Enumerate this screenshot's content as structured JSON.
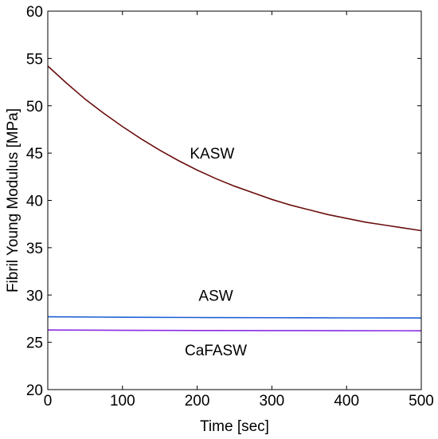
{
  "chart_data": {
    "type": "line",
    "xlabel": "Time [sec]",
    "ylabel": "Fibril Young Modulus [MPa]",
    "xlim": [
      0,
      500
    ],
    "ylim": [
      20,
      60
    ],
    "xticks": [
      0,
      100,
      200,
      300,
      400,
      500
    ],
    "yticks": [
      20,
      25,
      30,
      35,
      40,
      45,
      50,
      55,
      60
    ],
    "grid": false,
    "series": [
      {
        "name": "KASW",
        "color": "#6b0f0f",
        "x": [
          0,
          25,
          50,
          75,
          100,
          125,
          150,
          175,
          200,
          225,
          250,
          275,
          300,
          325,
          350,
          375,
          400,
          425,
          450,
          475,
          500
        ],
        "y": [
          54.2,
          52.4,
          50.7,
          49.2,
          47.8,
          46.5,
          45.3,
          44.2,
          43.2,
          42.3,
          41.5,
          40.8,
          40.1,
          39.5,
          39.0,
          38.5,
          38.1,
          37.7,
          37.4,
          37.1,
          36.8
        ]
      },
      {
        "name": "ASW",
        "color": "#1f5fd6",
        "x": [
          0,
          100,
          200,
          300,
          400,
          500
        ],
        "y": [
          27.7,
          27.65,
          27.62,
          27.6,
          27.58,
          27.57
        ]
      },
      {
        "name": "CaFASW",
        "color": "#8a2be2",
        "x": [
          0,
          100,
          200,
          300,
          400,
          500
        ],
        "y": [
          26.3,
          26.27,
          26.25,
          26.24,
          26.23,
          26.22
        ]
      }
    ],
    "annotations": [
      {
        "text": "KASW",
        "x": 220,
        "y": 45
      },
      {
        "text": "ASW",
        "x": 225,
        "y": 30
      },
      {
        "text": "CaFASW",
        "x": 225,
        "y": 24.2
      }
    ]
  }
}
